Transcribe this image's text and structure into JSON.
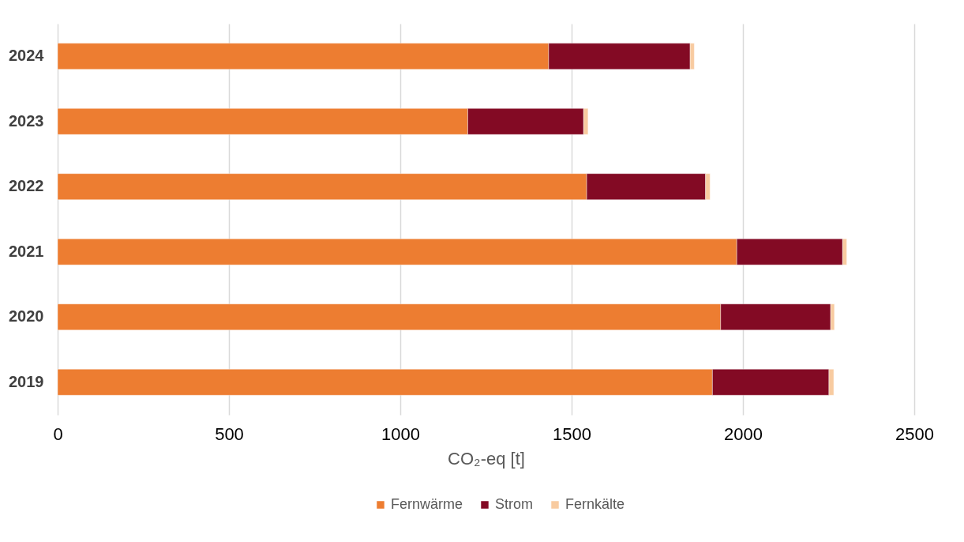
{
  "chart_data": {
    "type": "bar",
    "orientation": "horizontal",
    "stacked": true,
    "categories": [
      "2024",
      "2023",
      "2022",
      "2021",
      "2020",
      "2019"
    ],
    "series": [
      {
        "name": "Fernwärme",
        "color": "#ed7d31",
        "values": [
          1433,
          1197,
          1544,
          1982,
          1935,
          1911
        ]
      },
      {
        "name": "Strom",
        "color": "#830a24",
        "values": [
          413,
          338,
          347,
          309,
          321,
          340
        ]
      },
      {
        "name": "Fernkälte",
        "color": "#f8cba0",
        "values": [
          12,
          13,
          13,
          12,
          11,
          14
        ]
      }
    ],
    "xlabel": "CO₂-eq [t]",
    "xlim": [
      0,
      2500
    ],
    "xticks": [
      0,
      500,
      1000,
      1500,
      2000,
      2500
    ],
    "grid": "x",
    "legend": "bottom"
  }
}
